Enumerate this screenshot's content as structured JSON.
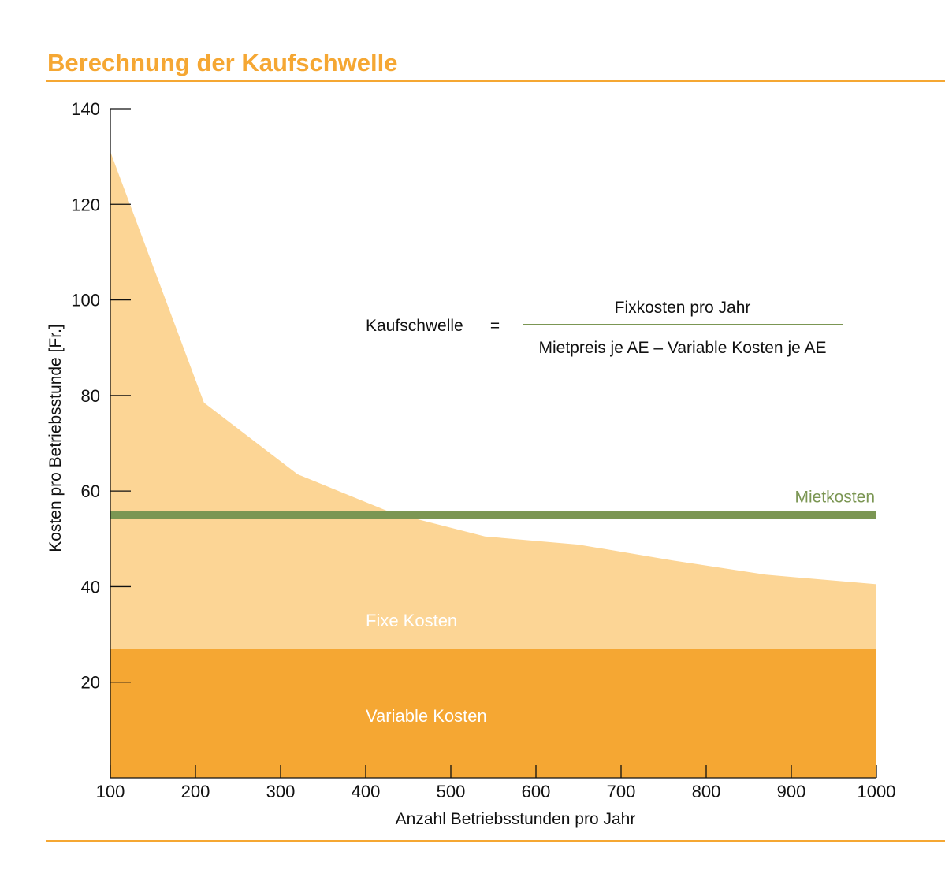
{
  "title": "Berechnung der Kaufschwelle",
  "colors": {
    "accent": "#f5a733",
    "fixed_costs": "#fcd595",
    "variable_costs": "#f5a733",
    "rent": "#7b9653"
  },
  "formula": {
    "lhs": "Kaufschwelle",
    "equals": "=",
    "numerator": "Fixkosten pro Jahr",
    "denominator": "Mietpreis je AE – Variable Kosten je AE"
  },
  "chart_data": {
    "type": "area",
    "xlabel": "Anzahl Betriebsstunden pro Jahr",
    "ylabel": "Kosten pro Betriebsstunde [Fr.]",
    "xlim": [
      100,
      1000
    ],
    "ylim": [
      0,
      140
    ],
    "x_ticks": [
      "100",
      "200",
      "300",
      "400",
      "500",
      "600",
      "700",
      "800",
      "900",
      "1000"
    ],
    "y_ticks": [
      "20",
      "40",
      "60",
      "80",
      "100",
      "120",
      "140"
    ],
    "series": [
      {
        "name": "Variable Kosten",
        "x": [
          100,
          1000
        ],
        "values": [
          27,
          27
        ]
      },
      {
        "name": "Fixe Kosten",
        "x": [
          100,
          210,
          320,
          430,
          540,
          650,
          760,
          870,
          1000
        ],
        "values": [
          131,
          78.5,
          63.5,
          55.5,
          50.5,
          48.8,
          45.5,
          42.5,
          40.5
        ]
      },
      {
        "name": "Mietkosten",
        "x": [
          100,
          1000
        ],
        "values": [
          55,
          55
        ]
      }
    ]
  }
}
